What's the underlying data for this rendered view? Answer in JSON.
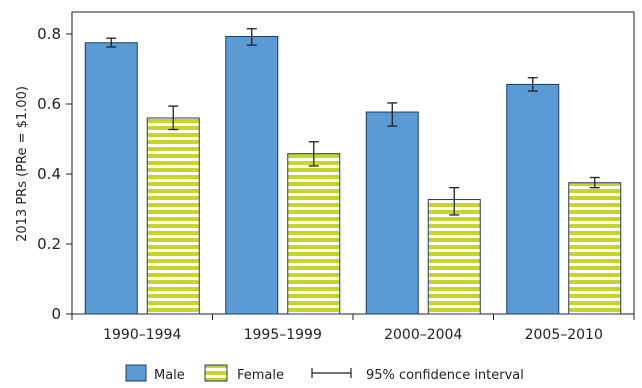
{
  "chart_data": {
    "type": "bar",
    "categories": [
      "1990–1994",
      "1995–1999",
      "2000–2004",
      "2005–2010"
    ],
    "ylabel": "2013 PRs (PRe = $1.00)",
    "xlabel": "",
    "ylim": [
      0,
      0.8
    ],
    "yticks": [
      "0",
      "0.2",
      "0.4",
      "0.6",
      "0.8"
    ],
    "series": [
      {
        "name": "Male",
        "values": [
          0.775,
          0.793,
          0.577,
          0.656
        ],
        "ci_low": [
          0.763,
          0.768,
          0.537,
          0.637
        ],
        "ci_high": [
          0.788,
          0.815,
          0.603,
          0.675
        ]
      },
      {
        "name": "Female",
        "values": [
          0.56,
          0.458,
          0.327,
          0.375
        ],
        "ci_low": [
          0.527,
          0.423,
          0.283,
          0.361
        ],
        "ci_high": [
          0.594,
          0.492,
          0.361,
          0.39
        ]
      }
    ],
    "colors": {
      "male": "#5b9bd5",
      "male_edge": "#1f3b5e",
      "female_stripe": "#c7d42a",
      "female_bg": "#ffffff"
    },
    "legend": {
      "male": "Male",
      "female": "Female",
      "ci": "95% confidence interval",
      "placement": "bottom"
    }
  }
}
